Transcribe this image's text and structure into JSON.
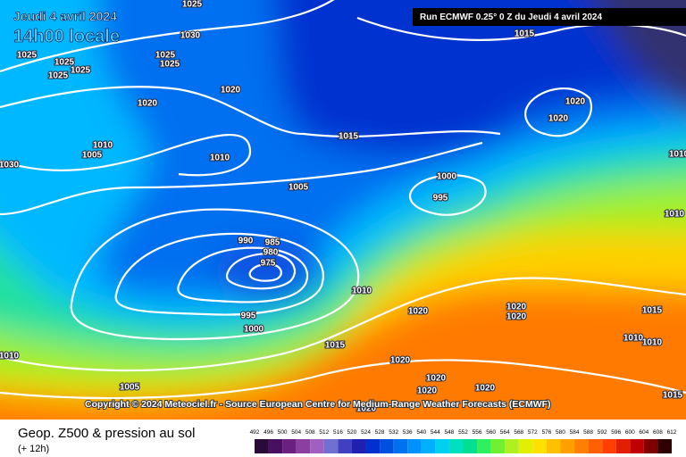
{
  "header": {
    "date": "Jeudi 4 avril 2024",
    "time": "14h00 locale",
    "run": "Run ECMWF 0.25° 0 Z du Jeudi 4 avril 2024"
  },
  "copyright": "Copyright © 2024 Meteociel.fr - Source European Centre for Medium-Range Weather Forecasts (ECMWF)",
  "footer": {
    "title": "Geop. Z500 & pression au sol",
    "lead": "(+ 12h)"
  },
  "legend": {
    "levels": [
      "492",
      "496",
      "500",
      "504",
      "508",
      "512",
      "516",
      "520",
      "524",
      "528",
      "532",
      "536",
      "540",
      "544",
      "548",
      "552",
      "556",
      "560",
      "564",
      "568",
      "572",
      "576",
      "580",
      "584",
      "588",
      "592",
      "596",
      "600",
      "604",
      "608",
      "612"
    ],
    "colors": [
      "#2a0a3a",
      "#4a1060",
      "#6a2080",
      "#8a40a0",
      "#a060c0",
      "#7070d0",
      "#4040c0",
      "#2020b0",
      "#0030d0",
      "#0050e0",
      "#0070f0",
      "#0090ff",
      "#00b0ff",
      "#00d0f0",
      "#00e0c0",
      "#00e090",
      "#30f060",
      "#70f030",
      "#b0f020",
      "#e0f000",
      "#ffe000",
      "#ffc000",
      "#ffa000",
      "#ff8000",
      "#ff6000",
      "#ff4000",
      "#e02000",
      "#c00000",
      "#800000",
      "#300000"
    ]
  },
  "isobar_labels": [
    "1025",
    "1030",
    "1025",
    "1025",
    "1025",
    "1025",
    "1025",
    "1025",
    "1020",
    "1020",
    "1010",
    "1005",
    "1010",
    "1005",
    "1015",
    "1015",
    "1020",
    "1020",
    "1000",
    "995",
    "990",
    "985",
    "980",
    "975",
    "1010",
    "1020",
    "995",
    "1000",
    "1015",
    "1020",
    "1020",
    "1020",
    "1015",
    "1010",
    "1010",
    "1005",
    "1010",
    "1030",
    "1010",
    "1010",
    "1020",
    "1020",
    "1020",
    "1015",
    "1020"
  ]
}
